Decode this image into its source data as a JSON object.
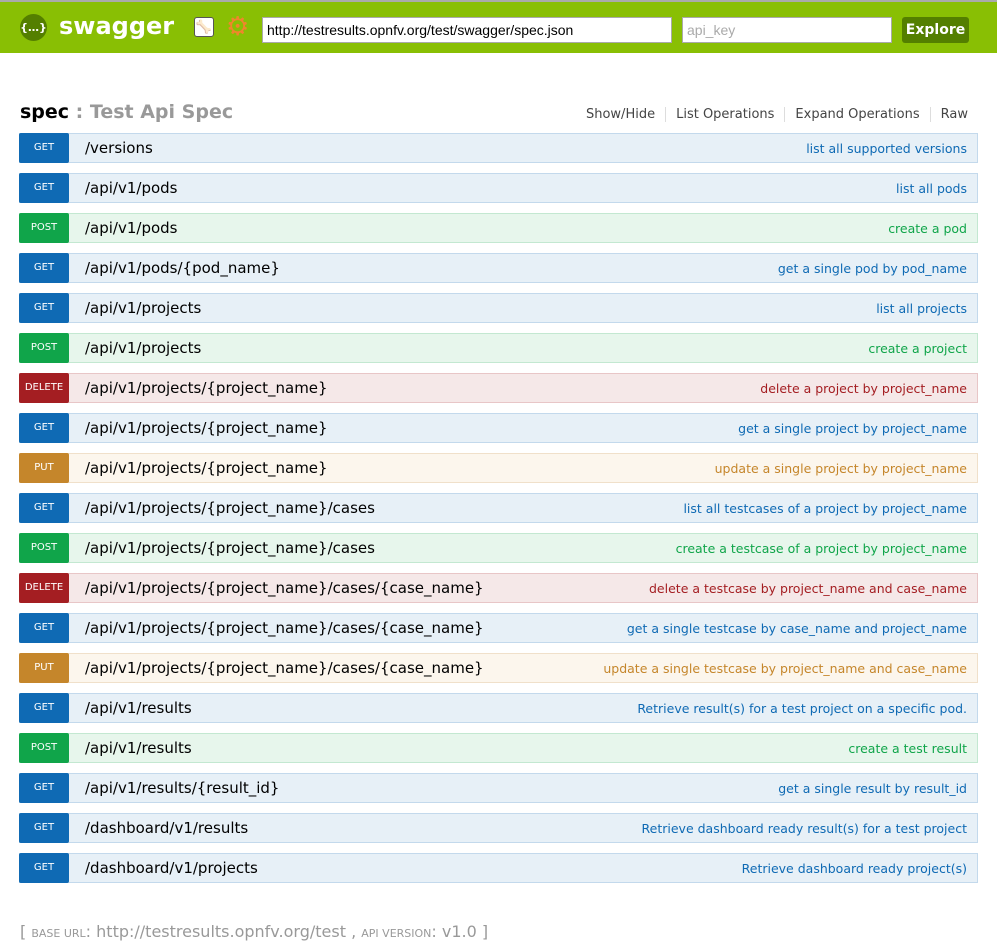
{
  "header": {
    "logo_text": "swagger",
    "logo_glyph": "{…}",
    "url": "http://testresults.opnfv.org/test/swagger/spec.json",
    "api_key_placeholder": "api_key",
    "explore_label": "Explore"
  },
  "spec": {
    "name": "spec",
    "title": "Test Api Spec",
    "links": [
      "Show/Hide",
      "List Operations",
      "Expand Operations",
      "Raw"
    ]
  },
  "colors": {
    "header": "#89bf04",
    "get": "#0f6ab4",
    "post": "#10a54a",
    "delete": "#a41e22",
    "put": "#c5862b"
  },
  "operations": [
    {
      "method": "GET",
      "path": "/versions",
      "desc": "list all supported versions"
    },
    {
      "method": "GET",
      "path": "/api/v1/pods",
      "desc": "list all pods"
    },
    {
      "method": "POST",
      "path": "/api/v1/pods",
      "desc": "create a pod"
    },
    {
      "method": "GET",
      "path": "/api/v1/pods/{pod_name}",
      "desc": "get a single pod by pod_name"
    },
    {
      "method": "GET",
      "path": "/api/v1/projects",
      "desc": "list all projects"
    },
    {
      "method": "POST",
      "path": "/api/v1/projects",
      "desc": "create a project"
    },
    {
      "method": "DELETE",
      "path": "/api/v1/projects/{project_name}",
      "desc": "delete a project by project_name"
    },
    {
      "method": "GET",
      "path": "/api/v1/projects/{project_name}",
      "desc": "get a single project by project_name"
    },
    {
      "method": "PUT",
      "path": "/api/v1/projects/{project_name}",
      "desc": "update a single project by project_name"
    },
    {
      "method": "GET",
      "path": "/api/v1/projects/{project_name}/cases",
      "desc": "list all testcases of a project by project_name"
    },
    {
      "method": "POST",
      "path": "/api/v1/projects/{project_name}/cases",
      "desc": "create a testcase of a project by project_name"
    },
    {
      "method": "DELETE",
      "path": "/api/v1/projects/{project_name}/cases/{case_name}",
      "desc": "delete a testcase by project_name and case_name"
    },
    {
      "method": "GET",
      "path": "/api/v1/projects/{project_name}/cases/{case_name}",
      "desc": "get a single testcase by case_name and project_name"
    },
    {
      "method": "PUT",
      "path": "/api/v1/projects/{project_name}/cases/{case_name}",
      "desc": "update a single testcase by project_name and case_name"
    },
    {
      "method": "GET",
      "path": "/api/v1/results",
      "desc": "Retrieve result(s) for a test project on a specific pod."
    },
    {
      "method": "POST",
      "path": "/api/v1/results",
      "desc": "create a test result"
    },
    {
      "method": "GET",
      "path": "/api/v1/results/{result_id}",
      "desc": "get a single result by result_id"
    },
    {
      "method": "GET",
      "path": "/dashboard/v1/results",
      "desc": "Retrieve dashboard ready result(s) for a test project"
    },
    {
      "method": "GET",
      "path": "/dashboard/v1/projects",
      "desc": "Retrieve dashboard ready project(s)"
    }
  ],
  "footer": {
    "open": "[",
    "base_url_label": "base url",
    "base_url": "http://testresults.opnfv.org/test",
    "sep": ",",
    "api_version_label": "api version",
    "api_version": "v1.0",
    "close": "]"
  }
}
